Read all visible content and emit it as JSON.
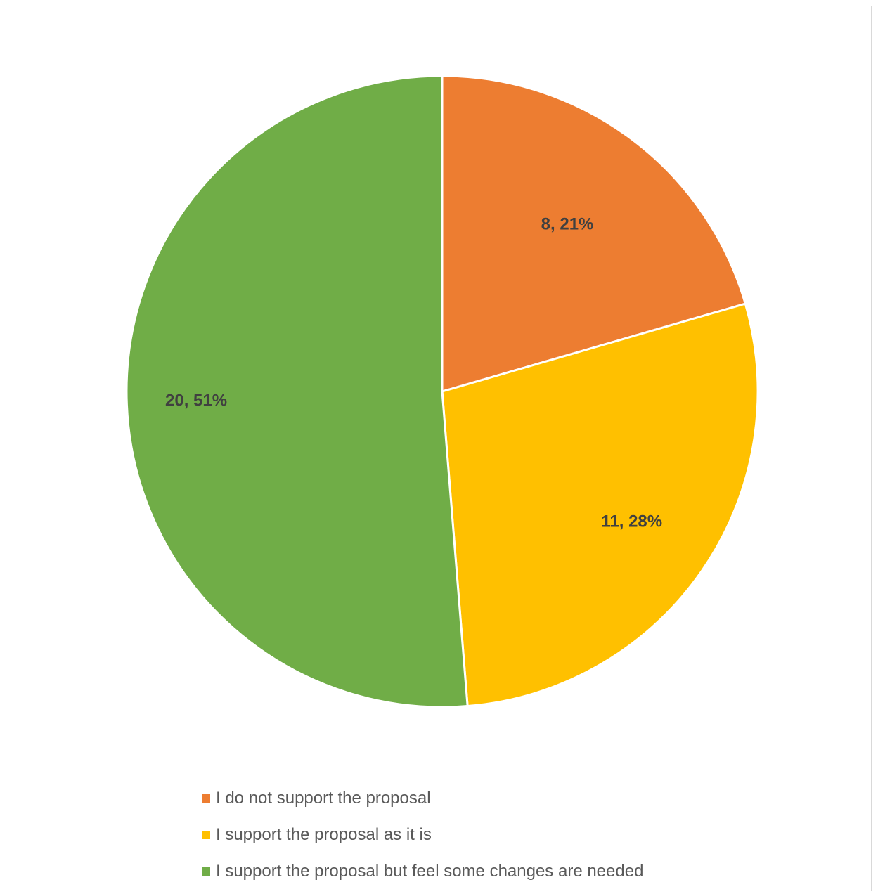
{
  "chart_data": {
    "type": "pie",
    "title": "",
    "legend_position": "bottom",
    "slices": [
      {
        "label": "I do not support the proposal",
        "value": 8,
        "percent": "21%",
        "data_label": "8, 21%",
        "color": "#ED7D31"
      },
      {
        "label": "I support the proposal as it is",
        "value": 11,
        "percent": "28%",
        "data_label": "11, 28%",
        "color": "#FFC000"
      },
      {
        "label": "I support the proposal but feel some changes are needed",
        "value": 20,
        "percent": "51%",
        "data_label": "20, 51%",
        "color": "#70AD47"
      }
    ]
  }
}
